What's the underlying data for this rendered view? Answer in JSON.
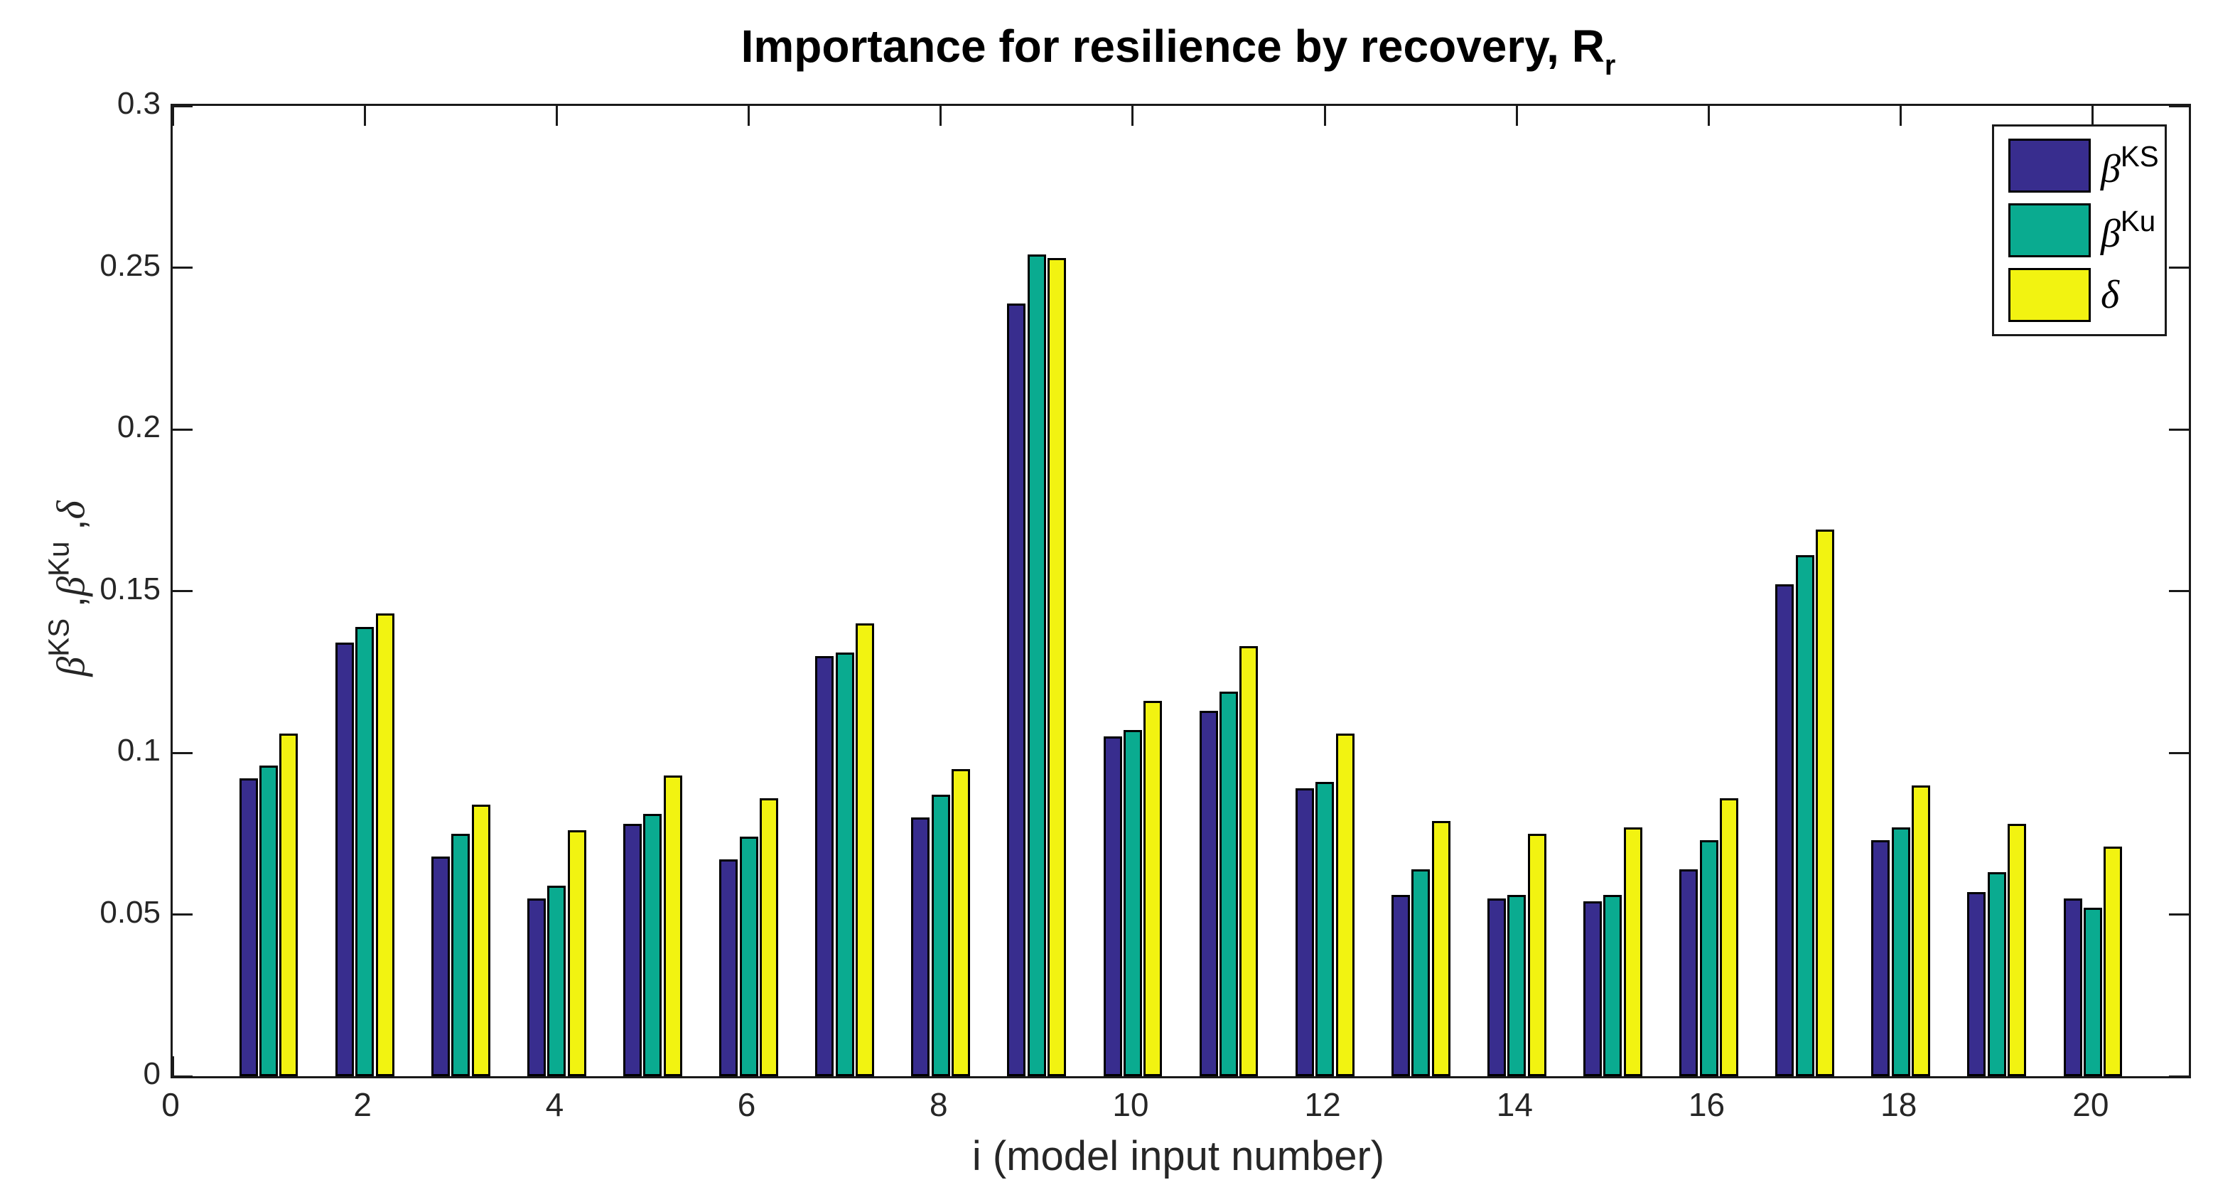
{
  "title": {
    "text": "Importance for resilience by recovery, R",
    "sub": "r"
  },
  "axes": {
    "xlabel": "i (model input number)",
    "x_tick_values": [
      0,
      2,
      4,
      6,
      8,
      10,
      12,
      14,
      16,
      18,
      20
    ],
    "x_tick_labels": [
      "0",
      "2",
      "4",
      "6",
      "8",
      "10",
      "12",
      "14",
      "16",
      "18",
      "20"
    ],
    "y_tick_values": [
      0,
      0.05,
      0.1,
      0.15,
      0.2,
      0.25,
      0.3
    ],
    "y_tick_labels": [
      "0",
      "0.05",
      "0.1",
      "0.15",
      "0.2",
      "0.25",
      "0.3"
    ],
    "xlim": [
      0,
      21
    ],
    "ylim": [
      0,
      0.3
    ]
  },
  "ylabel_parts": [
    {
      "text": "β",
      "italic": true
    },
    {
      "text": "KS",
      "sup": true
    },
    {
      "text": " ,",
      "italic": false
    },
    {
      "text": "β",
      "italic": true
    },
    {
      "text": "Ku",
      "sup": true
    },
    {
      "text": " ,",
      "italic": false
    },
    {
      "text": "δ",
      "italic": true
    }
  ],
  "legend": {
    "items": [
      {
        "base": "β",
        "sup": "KS",
        "color": "#382D8E"
      },
      {
        "base": "β",
        "sup": "Ku",
        "color": "#0AAB90"
      },
      {
        "base": "δ",
        "sup": "",
        "color": "#F2F311"
      }
    ]
  },
  "colors": {
    "bar_blue": "#382D8E",
    "bar_teal": "#0AAB90",
    "bar_yellow": "#F2F311",
    "bar_edge": "#000000",
    "axis": "#1A1A1A",
    "tick_label": "#262626",
    "background": "#FFFFFF"
  },
  "chart_data": {
    "type": "bar",
    "title": "Importance for resilience by recovery, R_r",
    "xlabel": "i (model input number)",
    "ylabel": "β^{KS} ,β^{Ku} ,δ",
    "categories": [
      1,
      2,
      3,
      4,
      5,
      6,
      7,
      8,
      9,
      10,
      11,
      12,
      13,
      14,
      15,
      16,
      17,
      18,
      19,
      20
    ],
    "series": [
      {
        "name": "β^KS",
        "color": "#382D8E",
        "values": [
          0.092,
          0.134,
          0.068,
          0.055,
          0.078,
          0.067,
          0.13,
          0.08,
          0.239,
          0.105,
          0.113,
          0.089,
          0.056,
          0.055,
          0.054,
          0.064,
          0.152,
          0.073,
          0.057,
          0.055
        ]
      },
      {
        "name": "β^Ku",
        "color": "#0AAB90",
        "values": [
          0.096,
          0.139,
          0.075,
          0.059,
          0.081,
          0.074,
          0.131,
          0.087,
          0.254,
          0.107,
          0.119,
          0.091,
          0.064,
          0.056,
          0.056,
          0.073,
          0.161,
          0.077,
          0.063,
          0.052
        ]
      },
      {
        "name": "δ",
        "color": "#F2F311",
        "values": [
          0.106,
          0.143,
          0.084,
          0.076,
          0.093,
          0.086,
          0.14,
          0.095,
          0.253,
          0.116,
          0.133,
          0.106,
          0.079,
          0.075,
          0.077,
          0.086,
          0.169,
          0.09,
          0.078,
          0.071
        ]
      }
    ],
    "xlim": [
      0,
      21
    ],
    "ylim": [
      0,
      0.3
    ],
    "x_ticks": [
      0,
      2,
      4,
      6,
      8,
      10,
      12,
      14,
      16,
      18,
      20
    ],
    "y_ticks": [
      0,
      0.05,
      0.1,
      0.15,
      0.2,
      0.25,
      0.3
    ],
    "grid": false,
    "legend_position": "top-right"
  }
}
